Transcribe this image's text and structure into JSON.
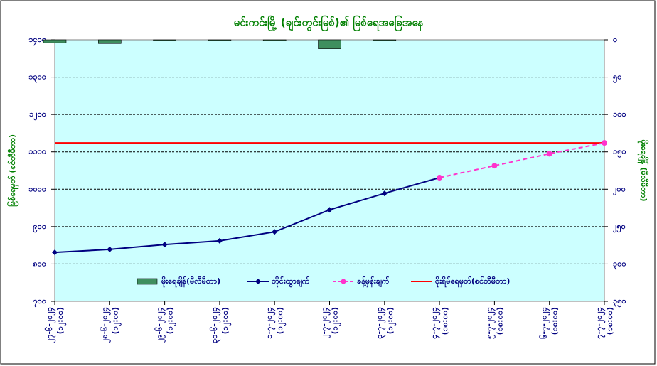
{
  "chart_data": {
    "type": "combo",
    "title": "မင်းကင်းမြို့ (ချင်းတွင်းမြစ်)၏ မြစ်ရေအခြေအနေ",
    "y_label": "မြစ်ရေမှတ် (စင်တီမီတာ)",
    "y2_label": "မိုးရေချိန် (မီလီမီတာ)",
    "categories": [
      "၂၇-၆-၂၀၂၄",
      "၂၈-၆-၂၀၂၄",
      "၂၉-၆-၂၀၂၄",
      "၃၀-၆-၂၀၂၄",
      "၁-၇-၂၀၂၄",
      "၂-၇-၂၀၂၄",
      "၃-၇-၂၀၂၄",
      "၄-၇-၂၀၂၄",
      "၅-၇-၂၀၂၄",
      "၆-၇-၂၀၂၄",
      "၇-၇-၂၀၂၄"
    ],
    "category_times": [
      "(၁၂:၀၀)",
      "(၁၂:၀၀)",
      "(၁၂:၀၀)",
      "(၁၂:၀၀)",
      "(၁၂:၀၀)",
      "(၁၂:၀၀)",
      "(၁၂:၀၀)",
      "(၁၈:၀၀)",
      "(၁၈:၀၀)",
      "(၁၈:၀၀)",
      "(၁၈:၀၀)"
    ],
    "ylim": [
      700,
      1400
    ],
    "yticks": [
      {
        "value": 700,
        "label": "၇၀၀"
      },
      {
        "value": 800,
        "label": "၈၀၀"
      },
      {
        "value": 900,
        "label": "၉၀၀"
      },
      {
        "value": 1000,
        "label": "၁၀၀၀"
      },
      {
        "value": 1100,
        "label": "၁၁၀၀"
      },
      {
        "value": 1200,
        "label": "၁၂၀၀"
      },
      {
        "value": 1300,
        "label": "၁၃၀၀"
      },
      {
        "value": 1400,
        "label": "၁၄၀၀"
      }
    ],
    "y2lim": [
      0,
      350
    ],
    "y2_inverted": true,
    "y2ticks": [
      {
        "value": 0,
        "label": "၀"
      },
      {
        "value": 50,
        "label": "၅၀"
      },
      {
        "value": 100,
        "label": "၁၀၀"
      },
      {
        "value": 150,
        "label": "၁၅၀"
      },
      {
        "value": 200,
        "label": "၂၀၀"
      },
      {
        "value": 250,
        "label": "၂၅၀"
      },
      {
        "value": 300,
        "label": "၃၀၀"
      },
      {
        "value": 350,
        "label": "၃၅၀"
      }
    ],
    "grid": true,
    "series": [
      {
        "name": "မိုးရေချိန်(မီလီမီတာ)",
        "kind": "bar",
        "axis": "y2",
        "color": "#3f8f5f",
        "values": [
          4,
          5,
          0,
          0,
          1,
          12,
          0,
          null,
          null,
          null,
          null
        ]
      },
      {
        "name": "တိုင်းထွာချက်",
        "kind": "line",
        "color": "#000080",
        "values": [
          831,
          839,
          852,
          862,
          886,
          945,
          989,
          1031,
          null,
          null,
          null
        ]
      },
      {
        "name": "ခန့်မှန်းချက်",
        "kind": "dashed",
        "color": "#ff33cc",
        "values": [
          null,
          null,
          null,
          null,
          null,
          null,
          null,
          1031,
          1063,
          1095,
          1124
        ]
      }
    ],
    "danger_level": {
      "name": "စိုးရိမ်ရေမှတ်(စင်တီမီတာ)",
      "color": "#ff0000",
      "value": 1124
    }
  }
}
